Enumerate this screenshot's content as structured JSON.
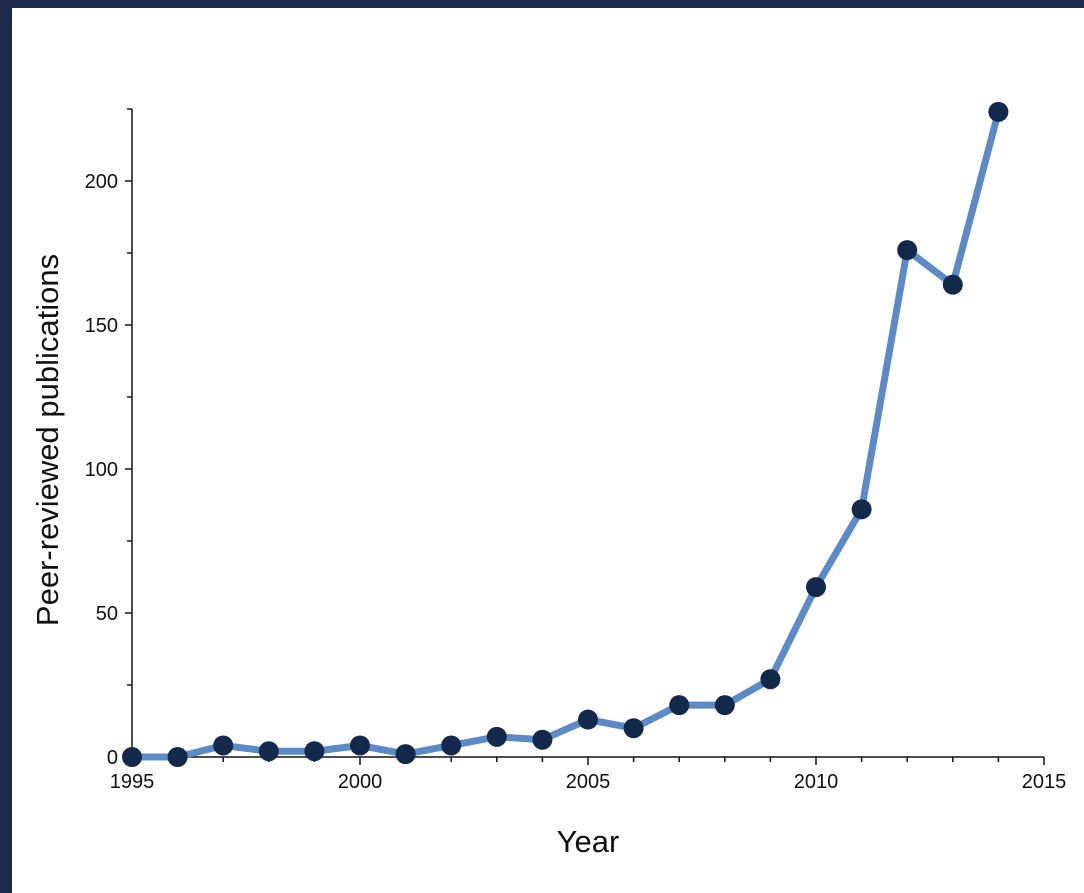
{
  "colors": {
    "border": "#1b2a4a",
    "background": "#ffffff",
    "line": "#5b8ac6",
    "marker": "#13294b",
    "axis": "#111111"
  },
  "chart_data": {
    "type": "line",
    "title": "",
    "xlabel": "Year",
    "ylabel": "Peer-reviewed publications",
    "xlim": [
      1995,
      2015
    ],
    "ylim": [
      0,
      225
    ],
    "xticks": [
      1995,
      2000,
      2005,
      2010,
      2015
    ],
    "yticks": [
      0,
      50,
      100,
      150,
      200
    ],
    "grid": false,
    "legend": "none",
    "series": [
      {
        "x": [
          1995,
          1996,
          1997,
          1998,
          1999,
          2000,
          2001,
          2002,
          2003,
          2004,
          2005,
          2006,
          2007,
          2008,
          2009,
          2010,
          2011,
          2012,
          2013,
          2014
        ],
        "y": [
          0,
          0,
          4,
          2,
          2,
          4,
          1,
          4,
          7,
          6,
          13,
          10,
          18,
          18,
          27,
          59,
          86,
          176,
          164,
          224
        ]
      }
    ]
  }
}
